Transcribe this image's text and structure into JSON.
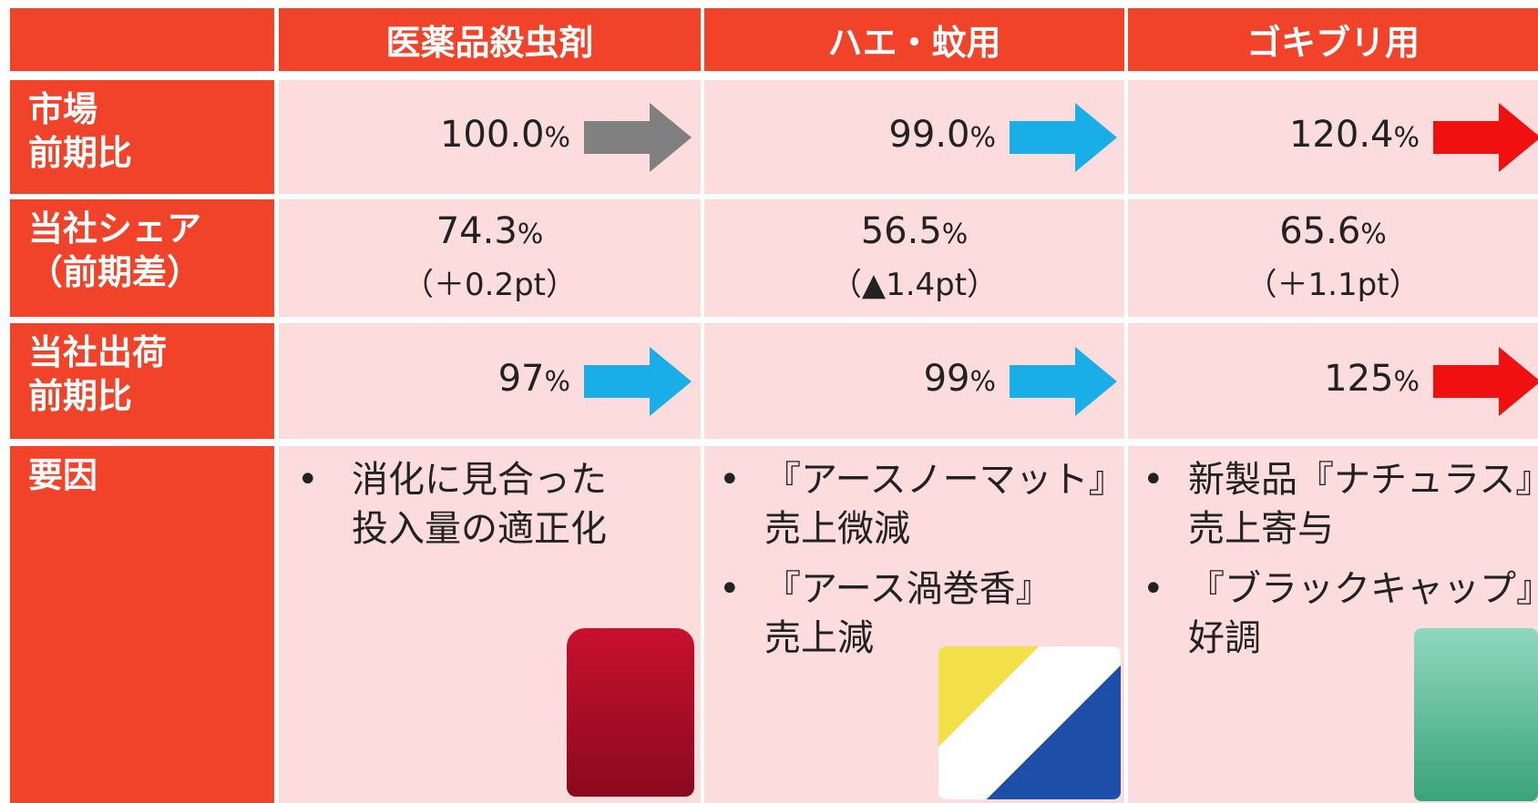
{
  "table": {
    "columns": [
      "医薬品殺虫剤",
      "ハエ・蚊用",
      "ゴキブリ用"
    ],
    "rows": [
      {
        "label": [
          "市場",
          "前期比"
        ],
        "cells": [
          {
            "value": "100.0",
            "unit": "%",
            "arrow": "#808080"
          },
          {
            "value": "99.0",
            "unit": "%",
            "arrow": "#1aaee8"
          },
          {
            "value": "120.4",
            "unit": "%",
            "arrow": "#f01010"
          }
        ]
      },
      {
        "label": [
          "当社シェア",
          "（前期差）"
        ],
        "cells": [
          {
            "value": "74.3",
            "unit": "%",
            "note": "（＋0.2pt）"
          },
          {
            "value": "56.5",
            "unit": "%",
            "note": "（▲1.4pt）"
          },
          {
            "value": "65.6",
            "unit": "%",
            "note": "（＋1.1pt）"
          }
        ]
      },
      {
        "label": [
          "当社出荷",
          "前期比"
        ],
        "cells": [
          {
            "value": "97",
            "unit": "%",
            "arrow": "#1aaee8"
          },
          {
            "value": "99",
            "unit": "%",
            "arrow": "#1aaee8"
          },
          {
            "value": "125",
            "unit": "%",
            "arrow": "#f01010"
          }
        ]
      },
      {
        "label": [
          "要因"
        ],
        "cells": [
          {
            "bullets": [
              [
                "消化に見合った",
                "投入量の適正化"
              ]
            ]
          },
          {
            "bullets": [
              [
                "『アースノーマット』",
                "売上微減"
              ],
              [
                "『アース渦巻香』",
                "売上減"
              ]
            ]
          },
          {
            "bullets": [
              [
                "新製品『ナチュラス』",
                "売上寄与"
              ],
              [
                "『ブラックキャップ』",
                "好調"
              ]
            ]
          }
        ]
      }
    ]
  }
}
